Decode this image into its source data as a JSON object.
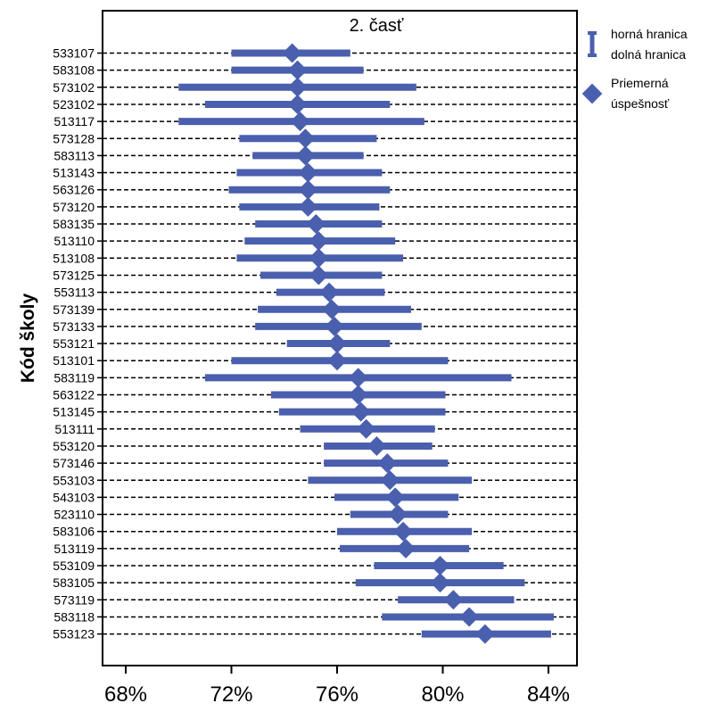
{
  "chart_data": {
    "type": "range",
    "title": "2. časť",
    "ylabel": "Kód školy",
    "xlabel": "",
    "xlim": [
      66,
      85
    ],
    "x_ticks": [
      68,
      72,
      76,
      80,
      84
    ],
    "x_tick_labels": [
      "68%",
      "72%",
      "76%",
      "80%",
      "84%"
    ],
    "grid": "dashed horizontal lines per school",
    "colors": {
      "series": "#4a5fad"
    },
    "legend": {
      "placement": "right, outside plot",
      "range_label_1": "horná hranica",
      "range_label_2": "dolná hranica",
      "mean_label_1": "Priemerná",
      "mean_label_2": "úspešnosť"
    },
    "series": [
      {
        "code": "533107",
        "lower": 72.0,
        "upper": 76.5,
        "mean": 74.3
      },
      {
        "code": "583108",
        "lower": 72.0,
        "upper": 77.0,
        "mean": 74.5
      },
      {
        "code": "573102",
        "lower": 70.0,
        "upper": 79.0,
        "mean": 74.5
      },
      {
        "code": "523102",
        "lower": 71.0,
        "upper": 78.0,
        "mean": 74.5
      },
      {
        "code": "513117",
        "lower": 70.0,
        "upper": 79.3,
        "mean": 74.6
      },
      {
        "code": "573128",
        "lower": 72.3,
        "upper": 77.5,
        "mean": 74.8
      },
      {
        "code": "583113",
        "lower": 72.8,
        "upper": 77.0,
        "mean": 74.8
      },
      {
        "code": "513143",
        "lower": 72.2,
        "upper": 77.7,
        "mean": 74.9
      },
      {
        "code": "563126",
        "lower": 71.9,
        "upper": 78.0,
        "mean": 74.9
      },
      {
        "code": "573120",
        "lower": 72.3,
        "upper": 77.6,
        "mean": 74.9
      },
      {
        "code": "583135",
        "lower": 72.9,
        "upper": 77.7,
        "mean": 75.2
      },
      {
        "code": "513110",
        "lower": 72.5,
        "upper": 78.2,
        "mean": 75.3
      },
      {
        "code": "513108",
        "lower": 72.2,
        "upper": 78.5,
        "mean": 75.3
      },
      {
        "code": "573125",
        "lower": 73.1,
        "upper": 77.7,
        "mean": 75.3
      },
      {
        "code": "553113",
        "lower": 73.7,
        "upper": 77.8,
        "mean": 75.7
      },
      {
        "code": "573139",
        "lower": 73.0,
        "upper": 78.8,
        "mean": 75.8
      },
      {
        "code": "573133",
        "lower": 72.9,
        "upper": 79.2,
        "mean": 75.9
      },
      {
        "code": "553121",
        "lower": 74.1,
        "upper": 78.0,
        "mean": 76.0
      },
      {
        "code": "513101",
        "lower": 72.0,
        "upper": 80.2,
        "mean": 76.0
      },
      {
        "code": "583119",
        "lower": 71.0,
        "upper": 82.6,
        "mean": 76.8
      },
      {
        "code": "563122",
        "lower": 73.5,
        "upper": 80.1,
        "mean": 76.8
      },
      {
        "code": "513145",
        "lower": 73.8,
        "upper": 80.1,
        "mean": 76.9
      },
      {
        "code": "513111",
        "lower": 74.6,
        "upper": 79.7,
        "mean": 77.1
      },
      {
        "code": "553120",
        "lower": 75.5,
        "upper": 79.6,
        "mean": 77.5
      },
      {
        "code": "573146",
        "lower": 75.5,
        "upper": 80.2,
        "mean": 77.9
      },
      {
        "code": "553103",
        "lower": 74.9,
        "upper": 81.1,
        "mean": 78.0
      },
      {
        "code": "543103",
        "lower": 75.9,
        "upper": 80.6,
        "mean": 78.2
      },
      {
        "code": "523110",
        "lower": 76.5,
        "upper": 80.2,
        "mean": 78.3
      },
      {
        "code": "583106",
        "lower": 76.0,
        "upper": 81.1,
        "mean": 78.5
      },
      {
        "code": "513119",
        "lower": 76.1,
        "upper": 81.0,
        "mean": 78.6
      },
      {
        "code": "553109",
        "lower": 77.4,
        "upper": 82.3,
        "mean": 79.9
      },
      {
        "code": "583105",
        "lower": 76.7,
        "upper": 83.1,
        "mean": 79.9
      },
      {
        "code": "573119",
        "lower": 78.3,
        "upper": 82.7,
        "mean": 80.4
      },
      {
        "code": "583118",
        "lower": 77.7,
        "upper": 84.2,
        "mean": 81.0
      },
      {
        "code": "553123",
        "lower": 79.2,
        "upper": 84.1,
        "mean": 81.6
      }
    ]
  }
}
